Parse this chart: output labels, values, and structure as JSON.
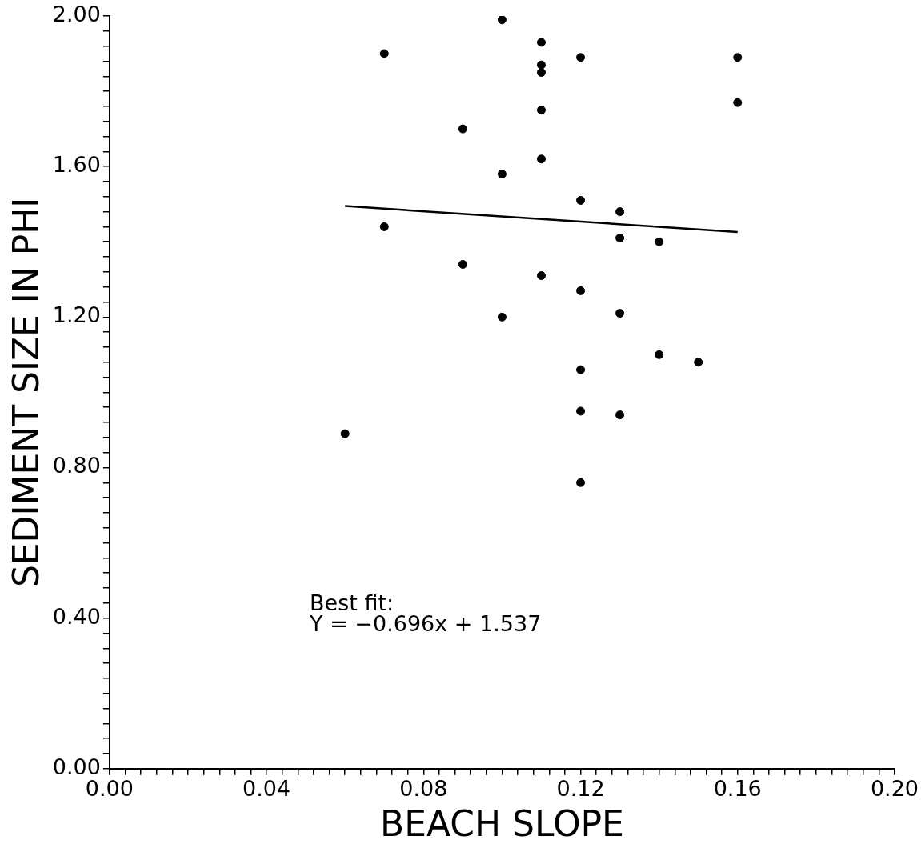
{
  "chart_data": {
    "type": "scatter",
    "xlabel": "BEACH SLOPE",
    "ylabel": "SEDIMENT SIZE IN PHI",
    "annotations": [
      "Best fit:",
      "Y = −0.696x + 1.537"
    ],
    "series": [
      {
        "color": "#000000",
        "marker": "circle",
        "x": [
          0.06,
          0.07,
          0.07,
          0.09,
          0.09,
          0.1,
          0.1,
          0.1,
          0.11,
          0.11,
          0.11,
          0.11,
          0.11,
          0.11,
          0.12,
          0.12,
          0.12,
          0.12,
          0.12,
          0.12,
          0.13,
          0.13,
          0.13,
          0.13,
          0.14,
          0.14,
          0.15,
          0.16,
          0.16
        ],
        "values": [
          0.89,
          1.9,
          1.44,
          1.7,
          1.34,
          1.99,
          1.58,
          1.2,
          1.93,
          1.87,
          1.85,
          1.75,
          1.62,
          1.31,
          1.89,
          1.51,
          1.27,
          1.06,
          0.95,
          0.76,
          1.48,
          1.41,
          1.21,
          0.94,
          1.4,
          1.1,
          1.08,
          1.89,
          1.77
        ]
      },
      {
        "type": "line",
        "color": "#000000",
        "marker": "none",
        "line_style": "solid",
        "x": [
          0.06,
          0.16
        ],
        "values": [
          1.495,
          1.426
        ]
      }
    ],
    "xlim": [
      0,
      0.2
    ],
    "ylim": [
      0,
      2
    ],
    "xticks": [
      {
        "value": 0,
        "label": "0.00"
      },
      {
        "value": 0.004,
        "label": null
      },
      {
        "value": 0.008,
        "label": null
      },
      {
        "value": 0.012,
        "label": null
      },
      {
        "value": 0.016,
        "label": null
      },
      {
        "value": 0.02,
        "label": null
      },
      {
        "value": 0.024,
        "label": null
      },
      {
        "value": 0.028,
        "label": null
      },
      {
        "value": 0.032,
        "label": null
      },
      {
        "value": 0.036,
        "label": null
      },
      {
        "value": 0.04,
        "label": "0.04"
      },
      {
        "value": 0.044,
        "label": null
      },
      {
        "value": 0.048,
        "label": null
      },
      {
        "value": 0.052,
        "label": null
      },
      {
        "value": 0.056,
        "label": null
      },
      {
        "value": 0.06,
        "label": null
      },
      {
        "value": 0.064,
        "label": null
      },
      {
        "value": 0.068,
        "label": null
      },
      {
        "value": 0.072,
        "label": null
      },
      {
        "value": 0.076,
        "label": null
      },
      {
        "value": 0.08,
        "label": "0.08"
      },
      {
        "value": 0.084,
        "label": null
      },
      {
        "value": 0.088,
        "label": null
      },
      {
        "value": 0.092,
        "label": null
      },
      {
        "value": 0.096,
        "label": null
      },
      {
        "value": 0.1,
        "label": null
      },
      {
        "value": 0.104,
        "label": null
      },
      {
        "value": 0.108,
        "label": null
      },
      {
        "value": 0.112,
        "label": null
      },
      {
        "value": 0.116,
        "label": null
      },
      {
        "value": 0.12,
        "label": "0.12"
      },
      {
        "value": 0.124,
        "label": null
      },
      {
        "value": 0.128,
        "label": null
      },
      {
        "value": 0.132,
        "label": null
      },
      {
        "value": 0.136,
        "label": null
      },
      {
        "value": 0.14,
        "label": null
      },
      {
        "value": 0.144,
        "label": null
      },
      {
        "value": 0.148,
        "label": null
      },
      {
        "value": 0.152,
        "label": null
      },
      {
        "value": 0.156,
        "label": null
      },
      {
        "value": 0.16,
        "label": "0.16"
      },
      {
        "value": 0.164,
        "label": null
      },
      {
        "value": 0.168,
        "label": null
      },
      {
        "value": 0.172,
        "label": null
      },
      {
        "value": 0.176,
        "label": null
      },
      {
        "value": 0.18,
        "label": null
      },
      {
        "value": 0.184,
        "label": null
      },
      {
        "value": 0.188,
        "label": null
      },
      {
        "value": 0.192,
        "label": null
      },
      {
        "value": 0.196,
        "label": null
      },
      {
        "value": 0.2,
        "label": "0.20"
      }
    ],
    "yticks": [
      {
        "value": 0,
        "label": "0.00"
      },
      {
        "value": 0.04,
        "label": null
      },
      {
        "value": 0.08,
        "label": null
      },
      {
        "value": 0.12,
        "label": null
      },
      {
        "value": 0.16,
        "label": null
      },
      {
        "value": 0.2,
        "label": null
      },
      {
        "value": 0.24,
        "label": null
      },
      {
        "value": 0.28,
        "label": null
      },
      {
        "value": 0.32,
        "label": null
      },
      {
        "value": 0.36,
        "label": null
      },
      {
        "value": 0.4,
        "label": "0.40"
      },
      {
        "value": 0.44,
        "label": null
      },
      {
        "value": 0.48,
        "label": null
      },
      {
        "value": 0.52,
        "label": null
      },
      {
        "value": 0.56,
        "label": null
      },
      {
        "value": 0.6,
        "label": null
      },
      {
        "value": 0.64,
        "label": null
      },
      {
        "value": 0.68,
        "label": null
      },
      {
        "value": 0.72,
        "label": null
      },
      {
        "value": 0.76,
        "label": null
      },
      {
        "value": 0.8,
        "label": "0.80"
      },
      {
        "value": 0.84,
        "label": null
      },
      {
        "value": 0.88,
        "label": null
      },
      {
        "value": 0.92,
        "label": null
      },
      {
        "value": 0.96,
        "label": null
      },
      {
        "value": 1.0,
        "label": null
      },
      {
        "value": 1.04,
        "label": null
      },
      {
        "value": 1.08,
        "label": null
      },
      {
        "value": 1.12,
        "label": null
      },
      {
        "value": 1.16,
        "label": null
      },
      {
        "value": 1.2,
        "label": "1.20"
      },
      {
        "value": 1.24,
        "label": null
      },
      {
        "value": 1.28,
        "label": null
      },
      {
        "value": 1.32,
        "label": null
      },
      {
        "value": 1.36,
        "label": null
      },
      {
        "value": 1.4,
        "label": null
      },
      {
        "value": 1.44,
        "label": null
      },
      {
        "value": 1.48,
        "label": null
      },
      {
        "value": 1.52,
        "label": null
      },
      {
        "value": 1.56,
        "label": null
      },
      {
        "value": 1.6,
        "label": "1.60"
      },
      {
        "value": 1.64,
        "label": null
      },
      {
        "value": 1.68,
        "label": null
      },
      {
        "value": 1.72,
        "label": null
      },
      {
        "value": 1.76,
        "label": null
      },
      {
        "value": 1.8,
        "label": null
      },
      {
        "value": 1.84,
        "label": null
      },
      {
        "value": 1.88,
        "label": null
      },
      {
        "value": 1.92,
        "label": null
      },
      {
        "value": 1.96,
        "label": null
      },
      {
        "value": 2.0,
        "label": "2.00"
      }
    ],
    "grid": false,
    "legend": false
  }
}
